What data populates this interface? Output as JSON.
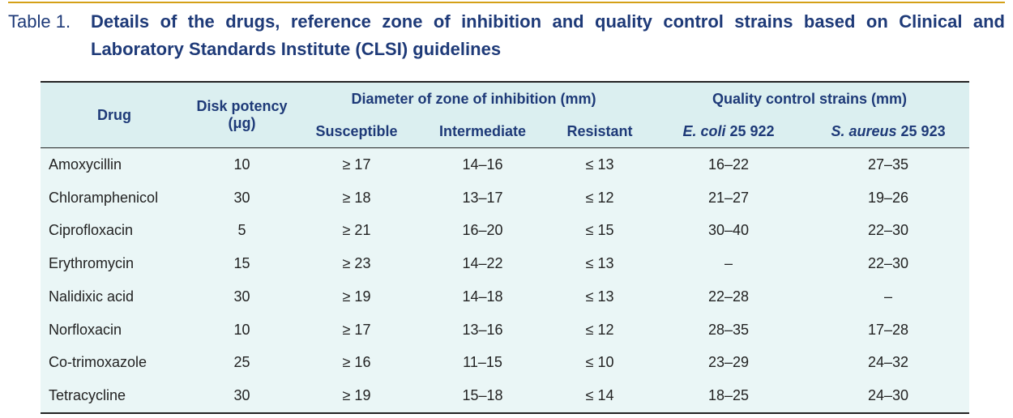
{
  "caption": {
    "number": "Table 1.",
    "title": "Details of the drugs, reference zone of inhibition and quality control strains based on Clinical and Laboratory Standards Institute (CLSI) guidelines"
  },
  "table": {
    "headers": {
      "drug": "Drug",
      "disk_potency": "Disk potency (μg)",
      "zone_group": "Diameter of zone of inhibition (mm)",
      "qc_group": "Quality control strains (mm)",
      "susceptible": "Susceptible",
      "intermediate": "Intermediate",
      "resistant": "Resistant",
      "ecoli_italic": "E. coli",
      "ecoli_rest": " 25 922",
      "saureus_italic": "S. aureus",
      "saureus_rest": " 25 923"
    },
    "rows": [
      {
        "drug": "Amoxycillin",
        "potency": "10",
        "susceptible": "≥ 17",
        "intermediate": "14–16",
        "resistant": "≤ 13",
        "ecoli": "16–22",
        "saureus": "27–35"
      },
      {
        "drug": "Chloramphenicol",
        "potency": "30",
        "susceptible": "≥ 18",
        "intermediate": "13–17",
        "resistant": "≤ 12",
        "ecoli": "21–27",
        "saureus": "19–26"
      },
      {
        "drug": "Ciprofloxacin",
        "potency": "5",
        "susceptible": "≥ 21",
        "intermediate": "16–20",
        "resistant": "≤ 15",
        "ecoli": "30–40",
        "saureus": "22–30"
      },
      {
        "drug": "Erythromycin",
        "potency": "15",
        "susceptible": "≥ 23",
        "intermediate": "14–22",
        "resistant": "≤ 13",
        "ecoli": "–",
        "saureus": "22–30"
      },
      {
        "drug": "Nalidixic acid",
        "potency": "30",
        "susceptible": "≥ 19",
        "intermediate": "14–18",
        "resistant": "≤ 13",
        "ecoli": "22–28",
        "saureus": "–"
      },
      {
        "drug": "Norfloxacin",
        "potency": "10",
        "susceptible": "≥ 17",
        "intermediate": "13–16",
        "resistant": "≤ 12",
        "ecoli": "28–35",
        "saureus": "17–28"
      },
      {
        "drug": "Co-trimoxazole",
        "potency": "25",
        "susceptible": "≥ 16",
        "intermediate": "11–15",
        "resistant": "≤ 10",
        "ecoli": "23–29",
        "saureus": "24–32"
      },
      {
        "drug": "Tetracycline",
        "potency": "30",
        "susceptible": "≥ 19",
        "intermediate": "15–18",
        "resistant": "≤ 14",
        "ecoli": "18–25",
        "saureus": "24–30"
      }
    ]
  }
}
